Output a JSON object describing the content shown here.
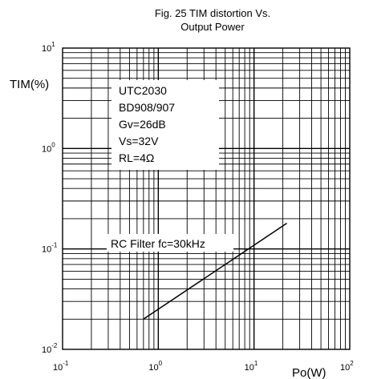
{
  "chart_data": {
    "type": "line",
    "title": [
      "Fig. 25 TIM distortion Vs.",
      "Output Power"
    ],
    "xlabel": "Po(W)",
    "ylabel": "TIM(%)",
    "x_scale": "log",
    "y_scale": "log",
    "xlim": [
      0.1,
      100
    ],
    "ylim": [
      0.01,
      10
    ],
    "x_ticks": [
      {
        "base": "10",
        "exp": "-1"
      },
      {
        "base": "10",
        "exp": "0"
      },
      {
        "base": "10",
        "exp": "1"
      },
      {
        "base": "10",
        "exp": "2"
      }
    ],
    "y_ticks": [
      {
        "base": "10",
        "exp": "1"
      },
      {
        "base": "10",
        "exp": "0"
      },
      {
        "base": "10",
        "exp": "-1"
      },
      {
        "base": "10",
        "exp": "-2"
      }
    ],
    "grid": true,
    "conditions": [
      "UTC2030",
      "BD908/907",
      "Gv=26dB",
      "Vs=32V",
      "RL=4Ω"
    ],
    "series": [
      {
        "name": "RC Filter fc=30kHz",
        "x": [
          0.7,
          22
        ],
        "y": [
          0.02,
          0.18
        ]
      }
    ],
    "colors": {
      "line": "#000000",
      "grid": "#000000",
      "background": "#ffffff"
    }
  }
}
